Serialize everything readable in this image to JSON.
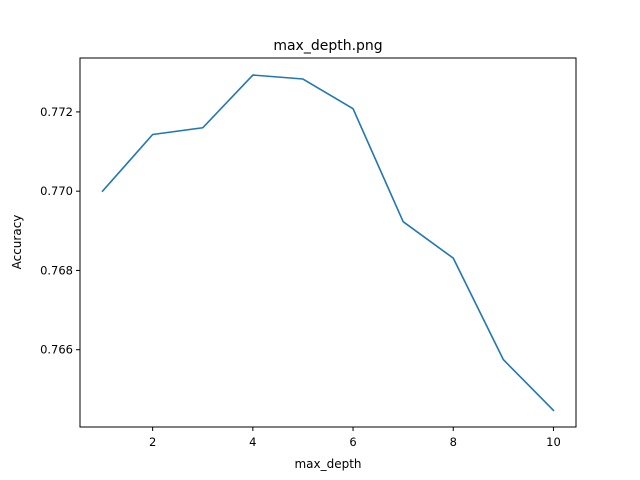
{
  "chart_data": {
    "type": "line",
    "title": "max_depth.png",
    "xlabel": "max_depth",
    "ylabel": "Accuracy",
    "x": [
      1,
      2,
      3,
      4,
      5,
      6,
      7,
      8,
      9,
      10
    ],
    "series": [
      {
        "color": "#1f77b4",
        "values": [
          0.77,
          0.77143,
          0.7716,
          0.77293,
          0.77283,
          0.77208,
          0.76923,
          0.76831,
          0.76575,
          0.76447
        ]
      }
    ],
    "xticks": [
      2,
      4,
      6,
      8,
      10
    ],
    "xtick_labels": [
      "2",
      "4",
      "6",
      "8",
      "10"
    ],
    "yticks": [
      0.766,
      0.768,
      0.77,
      0.772
    ],
    "ytick_labels": [
      "0.766",
      "0.768",
      "0.770",
      "0.772"
    ],
    "xlim": [
      0.55,
      10.45
    ],
    "ylim": [
      0.76405,
      0.77336
    ],
    "grid": false,
    "legend": "none"
  }
}
